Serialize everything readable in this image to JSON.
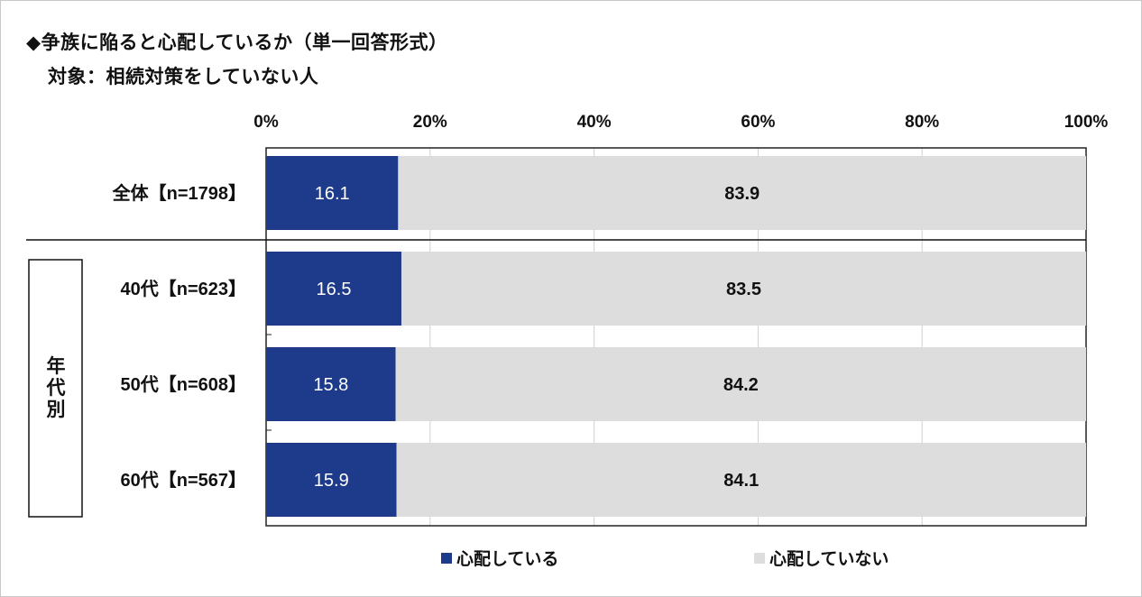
{
  "title": "◆争族に陥ると心配しているか（単一回答形式）",
  "subtitle": "対象：相続対策をしていない人",
  "chart_data": {
    "type": "bar",
    "orientation": "horizontal",
    "stacked": true,
    "percent_stacked": true,
    "title": "◆争族に陥ると心配しているか（単一回答形式）",
    "subtitle": "対象：相続対策をしていない人",
    "xlim": [
      0,
      100
    ],
    "x_ticks": [
      "0%",
      "20%",
      "40%",
      "60%",
      "80%",
      "100%"
    ],
    "x_axis_position": "top",
    "categories": [
      "全体【n=1798】",
      "40代【n=623】",
      "50代【n=608】",
      "60代【n=567】"
    ],
    "group_label": "年代別",
    "series": [
      {
        "name": "心配している",
        "values": [
          16.1,
          16.5,
          15.8,
          15.9
        ],
        "color": "#1e3a8a"
      },
      {
        "name": "心配していない",
        "values": [
          83.9,
          83.5,
          84.2,
          84.1
        ],
        "color": "#dddddd"
      }
    ],
    "legend_position": "bottom",
    "grid": true
  }
}
